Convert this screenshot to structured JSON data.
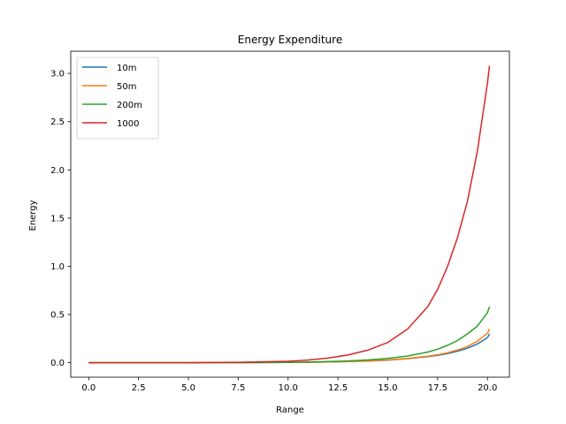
{
  "chart_data": {
    "type": "line",
    "title": "Energy Expenditure",
    "xlabel": "Range",
    "ylabel": "Energy",
    "xlim": [
      -0.9,
      21.1
    ],
    "ylim": [
      -0.15,
      3.23
    ],
    "xticks": [
      0.0,
      2.5,
      5.0,
      7.5,
      10.0,
      12.5,
      15.0,
      17.5,
      20.0
    ],
    "xtick_labels": [
      "0.0",
      "2.5",
      "5.0",
      "7.5",
      "10.0",
      "12.5",
      "15.0",
      "17.5",
      "20.0"
    ],
    "yticks": [
      0.0,
      0.5,
      1.0,
      1.5,
      2.0,
      2.5,
      3.0
    ],
    "ytick_labels": [
      "0.0",
      "0.5",
      "1.0",
      "1.5",
      "2.0",
      "2.5",
      "3.0"
    ],
    "grid": false,
    "legend_position": "top-left",
    "x": [
      0,
      2.5,
      5,
      7.5,
      10,
      11,
      12,
      13,
      14,
      15,
      16,
      17,
      17.5,
      18,
      18.5,
      19,
      19.5,
      20,
      20.1
    ],
    "series": [
      {
        "name": "10m",
        "color": "#1f77b4",
        "values": [
          0,
          0,
          0,
          0.001,
          0.003,
          0.005,
          0.008,
          0.012,
          0.018,
          0.027,
          0.042,
          0.063,
          0.076,
          0.095,
          0.12,
          0.15,
          0.195,
          0.26,
          0.3
        ]
      },
      {
        "name": "50m",
        "color": "#ff7f0e",
        "values": [
          0,
          0,
          0,
          0.001,
          0.003,
          0.005,
          0.008,
          0.013,
          0.019,
          0.029,
          0.045,
          0.068,
          0.083,
          0.104,
          0.132,
          0.168,
          0.225,
          0.305,
          0.35
        ]
      },
      {
        "name": "200m",
        "color": "#2ca02c",
        "values": [
          0,
          0,
          0,
          0.001,
          0.004,
          0.007,
          0.012,
          0.019,
          0.029,
          0.045,
          0.07,
          0.11,
          0.14,
          0.18,
          0.23,
          0.3,
          0.38,
          0.52,
          0.58
        ]
      },
      {
        "name": "1000",
        "color": "#d62728",
        "values": [
          0,
          0,
          0,
          0.005,
          0.015,
          0.028,
          0.048,
          0.08,
          0.13,
          0.21,
          0.35,
          0.58,
          0.76,
          1.0,
          1.3,
          1.68,
          2.2,
          2.9,
          3.08
        ]
      }
    ]
  }
}
